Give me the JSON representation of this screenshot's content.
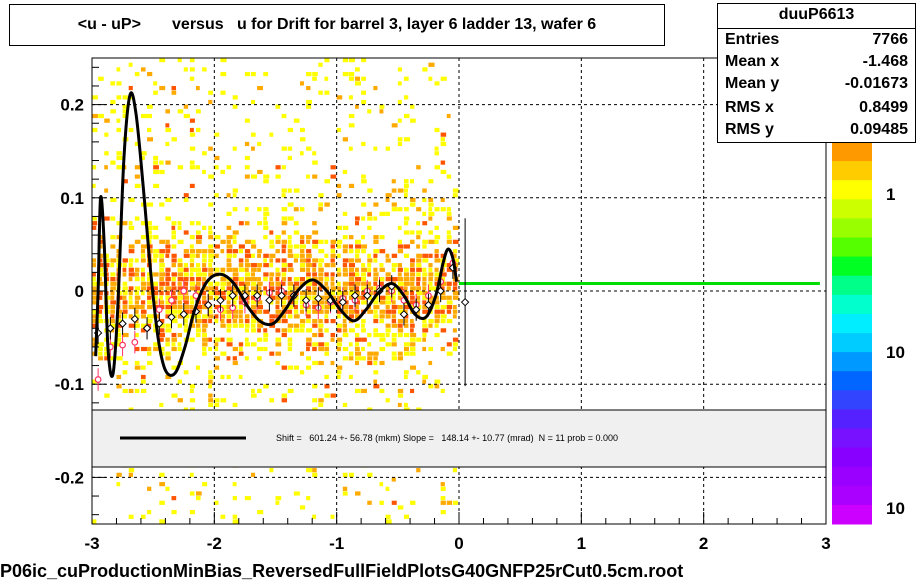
{
  "title": "<u - uP>       versus   u for Drift for barrel 3, layer 6 ladder 13, wafer 6",
  "stats": {
    "name": "duuP6613",
    "rows": [
      {
        "label": "Entries",
        "value": "7766"
      },
      {
        "label": "Mean x",
        "value": "-1.468"
      },
      {
        "label": "Mean y",
        "value": "-0.01673"
      },
      {
        "label": "RMS x",
        "value": "0.8499"
      },
      {
        "label": "RMS y",
        "value": "0.09485"
      }
    ]
  },
  "fit_legend": "Shift =   601.24 +- 56.78 (mkm) Slope =   148.14 +- 10.77 (mrad)  N = 11 prob = 0.000",
  "footer": "P06ic_cuProductionMinBias_ReversedFullFieldPlotsG40GNFP25rCut0.5cm.root",
  "colors": {
    "fit_curve": "#000000",
    "zero_line": "#00dd00",
    "points_black": "#000000",
    "points_red": "#ff3366",
    "heat_yellow": "#ffff00",
    "heat_orange": "#ffaa00",
    "heat_red": "#ff5500"
  },
  "chart_data": {
    "type": "scatter",
    "xlim": [
      -3,
      3
    ],
    "ylim": [
      -0.25,
      0.25
    ],
    "x_ticks": [
      "-3",
      "-2",
      "-1",
      "0",
      "1",
      "2",
      "3"
    ],
    "y_ticks": [
      "-0.2",
      "-0.1",
      "0",
      "0.1",
      "0.2"
    ],
    "palette_ticks": [
      "1",
      "10",
      "10"
    ],
    "grid": true,
    "heatmap_region": {
      "x": [
        -3,
        0
      ],
      "y": [
        -0.25,
        0.25
      ]
    },
    "profile_black": [
      {
        "x": -2.95,
        "y": -0.045
      },
      {
        "x": -2.85,
        "y": -0.04
      },
      {
        "x": -2.75,
        "y": -0.035
      },
      {
        "x": -2.65,
        "y": -0.03
      },
      {
        "x": -2.55,
        "y": -0.04
      },
      {
        "x": -2.45,
        "y": -0.035
      },
      {
        "x": -2.35,
        "y": -0.028
      },
      {
        "x": -2.25,
        "y": -0.025
      },
      {
        "x": -2.15,
        "y": -0.022
      },
      {
        "x": -2.05,
        "y": -0.015
      },
      {
        "x": -1.95,
        "y": -0.01
      },
      {
        "x": -1.85,
        "y": -0.005
      },
      {
        "x": -1.75,
        "y": -0.005
      },
      {
        "x": -1.65,
        "y": -0.005
      },
      {
        "x": -1.55,
        "y": -0.01
      },
      {
        "x": -1.45,
        "y": -0.005
      },
      {
        "x": -1.35,
        "y": -0.005
      },
      {
        "x": -1.25,
        "y": -0.01
      },
      {
        "x": -1.15,
        "y": -0.008
      },
      {
        "x": -1.05,
        "y": -0.01
      },
      {
        "x": -0.95,
        "y": -0.012
      },
      {
        "x": -0.85,
        "y": -0.005
      },
      {
        "x": -0.75,
        "y": -0.005
      },
      {
        "x": -0.65,
        "y": 0.0
      },
      {
        "x": -0.55,
        "y": 0.005
      },
      {
        "x": -0.45,
        "y": -0.025
      },
      {
        "x": -0.35,
        "y": -0.02
      },
      {
        "x": -0.25,
        "y": -0.015
      },
      {
        "x": -0.15,
        "y": 0.0
      },
      {
        "x": -0.05,
        "y": 0.025
      },
      {
        "x": 0.05,
        "y": -0.012
      }
    ],
    "profile_red": [
      {
        "x": -2.95,
        "y": -0.095
      },
      {
        "x": -2.85,
        "y": -0.06
      },
      {
        "x": -2.75,
        "y": -0.058
      },
      {
        "x": -2.65,
        "y": -0.055
      },
      {
        "x": -2.55,
        "y": -0.04
      },
      {
        "x": -2.45,
        "y": -0.02
      },
      {
        "x": -2.35,
        "y": -0.01
      },
      {
        "x": -2.25,
        "y": 0.0
      },
      {
        "x": -2.15,
        "y": -0.005
      },
      {
        "x": -2.05,
        "y": -0.015
      },
      {
        "x": -1.95,
        "y": -0.02
      },
      {
        "x": -1.85,
        "y": -0.018
      },
      {
        "x": -1.75,
        "y": -0.012
      },
      {
        "x": -1.65,
        "y": -0.008
      },
      {
        "x": -1.55,
        "y": -0.002
      },
      {
        "x": -1.45,
        "y": 0.0
      },
      {
        "x": -1.35,
        "y": -0.005
      },
      {
        "x": -1.25,
        "y": -0.015
      },
      {
        "x": -1.15,
        "y": -0.018
      },
      {
        "x": -1.05,
        "y": -0.012
      },
      {
        "x": -0.95,
        "y": -0.008
      },
      {
        "x": -0.85,
        "y": -0.01
      },
      {
        "x": -0.75,
        "y": 0.0
      },
      {
        "x": -0.65,
        "y": 0.003
      },
      {
        "x": -0.55,
        "y": 0.0
      },
      {
        "x": -0.45,
        "y": -0.01
      },
      {
        "x": -0.35,
        "y": -0.015
      },
      {
        "x": -0.25,
        "y": -0.005
      },
      {
        "x": -0.15,
        "y": 0.01
      },
      {
        "x": -0.05,
        "y": 0.03
      }
    ],
    "zero_line": {
      "x": [
        0,
        2.95
      ],
      "y": 0.008
    },
    "fit_curve": [
      {
        "x": -2.97,
        "y": -0.07
      },
      {
        "x": -2.95,
        "y": 0.0
      },
      {
        "x": -2.93,
        "y": 0.1
      },
      {
        "x": -2.9,
        "y": 0.05
      },
      {
        "x": -2.87,
        "y": -0.06
      },
      {
        "x": -2.83,
        "y": -0.09
      },
      {
        "x": -2.79,
        "y": -0.02
      },
      {
        "x": -2.74,
        "y": 0.14
      },
      {
        "x": -2.69,
        "y": 0.21
      },
      {
        "x": -2.64,
        "y": 0.19
      },
      {
        "x": -2.58,
        "y": 0.11
      },
      {
        "x": -2.52,
        "y": 0.02
      },
      {
        "x": -2.46,
        "y": -0.05
      },
      {
        "x": -2.4,
        "y": -0.085
      },
      {
        "x": -2.32,
        "y": -0.088
      },
      {
        "x": -2.24,
        "y": -0.06
      },
      {
        "x": -2.16,
        "y": -0.02
      },
      {
        "x": -2.06,
        "y": 0.01
      },
      {
        "x": -1.95,
        "y": 0.018
      },
      {
        "x": -1.84,
        "y": 0.008
      },
      {
        "x": -1.72,
        "y": -0.018
      },
      {
        "x": -1.62,
        "y": -0.033
      },
      {
        "x": -1.52,
        "y": -0.035
      },
      {
        "x": -1.42,
        "y": -0.02
      },
      {
        "x": -1.32,
        "y": 0.0
      },
      {
        "x": -1.2,
        "y": 0.012
      },
      {
        "x": -1.08,
        "y": 0.0
      },
      {
        "x": -0.97,
        "y": -0.02
      },
      {
        "x": -0.86,
        "y": -0.032
      },
      {
        "x": -0.76,
        "y": -0.02
      },
      {
        "x": -0.66,
        "y": -0.002
      },
      {
        "x": -0.55,
        "y": 0.008
      },
      {
        "x": -0.45,
        "y": -0.005
      },
      {
        "x": -0.36,
        "y": -0.025
      },
      {
        "x": -0.27,
        "y": -0.028
      },
      {
        "x": -0.19,
        "y": -0.005
      },
      {
        "x": -0.13,
        "y": 0.03
      },
      {
        "x": -0.09,
        "y": 0.045
      },
      {
        "x": -0.05,
        "y": 0.035
      },
      {
        "x": -0.02,
        "y": 0.01
      }
    ]
  }
}
